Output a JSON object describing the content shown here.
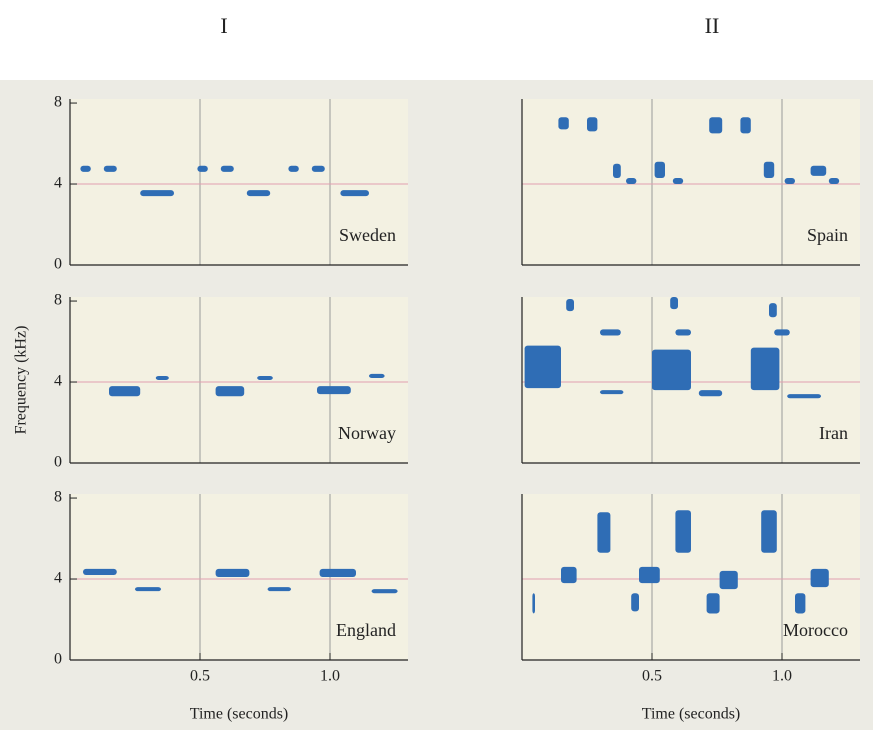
{
  "column_labels": [
    "I",
    "II"
  ],
  "chart_data": [
    {
      "type": "spectrogram",
      "title": "Sweden",
      "xlim": [
        0,
        1.3
      ],
      "ylim": [
        0,
        8.2
      ],
      "yticks": [
        8,
        4,
        0
      ],
      "xgrid": [
        0.5,
        1
      ],
      "ygrid": [
        4
      ],
      "color": "#2f6db5",
      "syllables": [
        {
          "time": [
            0.04,
            0.08
          ],
          "freq": [
            4.6,
            4.9
          ]
        },
        {
          "time": [
            0.13,
            0.18
          ],
          "freq": [
            4.6,
            4.9
          ]
        },
        {
          "time": [
            0.27,
            0.4
          ],
          "freq": [
            3.4,
            3.7
          ]
        },
        {
          "time": [
            0.49,
            0.53
          ],
          "freq": [
            4.6,
            4.9
          ]
        },
        {
          "time": [
            0.58,
            0.63
          ],
          "freq": [
            4.6,
            4.9
          ]
        },
        {
          "time": [
            0.68,
            0.77
          ],
          "freq": [
            3.4,
            3.7
          ]
        },
        {
          "time": [
            0.84,
            0.88
          ],
          "freq": [
            4.6,
            4.9
          ]
        },
        {
          "time": [
            0.93,
            0.98
          ],
          "freq": [
            4.6,
            4.9
          ]
        },
        {
          "time": [
            1.04,
            1.15
          ],
          "freq": [
            3.4,
            3.7
          ]
        }
      ]
    },
    {
      "type": "spectrogram",
      "title": "Spain",
      "xlim": [
        0,
        1.3
      ],
      "ylim": [
        0,
        8.2
      ],
      "xgrid": [
        0.5,
        1
      ],
      "ygrid": [
        4
      ],
      "color": "#2f6db5",
      "syllables": [
        {
          "time": [
            0.14,
            0.18
          ],
          "freq": [
            6.7,
            7.3
          ]
        },
        {
          "time": [
            0.25,
            0.29
          ],
          "freq": [
            6.6,
            7.3
          ]
        },
        {
          "time": [
            0.35,
            0.38
          ],
          "freq": [
            4.3,
            5.0
          ]
        },
        {
          "time": [
            0.4,
            0.44
          ],
          "freq": [
            4.0,
            4.3
          ]
        },
        {
          "time": [
            0.51,
            0.55
          ],
          "freq": [
            4.3,
            5.1
          ]
        },
        {
          "time": [
            0.58,
            0.62
          ],
          "freq": [
            4.0,
            4.3
          ]
        },
        {
          "time": [
            0.72,
            0.77
          ],
          "freq": [
            6.5,
            7.3
          ]
        },
        {
          "time": [
            0.84,
            0.88
          ],
          "freq": [
            6.5,
            7.3
          ]
        },
        {
          "time": [
            0.93,
            0.97
          ],
          "freq": [
            4.3,
            5.1
          ]
        },
        {
          "time": [
            1.01,
            1.05
          ],
          "freq": [
            4.0,
            4.3
          ]
        },
        {
          "time": [
            1.11,
            1.17
          ],
          "freq": [
            4.4,
            4.9
          ]
        },
        {
          "time": [
            1.18,
            1.22
          ],
          "freq": [
            4.0,
            4.3
          ]
        }
      ]
    },
    {
      "type": "spectrogram",
      "title": "Norway",
      "ylabel": "Frequency (kHz)",
      "xlim": [
        0,
        1.3
      ],
      "ylim": [
        0,
        8.2
      ],
      "yticks": [
        8,
        4,
        0
      ],
      "xgrid": [
        0.5,
        1
      ],
      "ygrid": [
        4
      ],
      "color": "#2f6db5",
      "syllables": [
        {
          "time": [
            0.15,
            0.27
          ],
          "freq": [
            3.3,
            3.8
          ]
        },
        {
          "time": [
            0.33,
            0.38
          ],
          "freq": [
            4.1,
            4.3
          ]
        },
        {
          "time": [
            0.56,
            0.67
          ],
          "freq": [
            3.3,
            3.8
          ]
        },
        {
          "time": [
            0.72,
            0.78
          ],
          "freq": [
            4.1,
            4.3
          ]
        },
        {
          "time": [
            0.95,
            1.08
          ],
          "freq": [
            3.4,
            3.8
          ]
        },
        {
          "time": [
            1.15,
            1.21
          ],
          "freq": [
            4.2,
            4.4
          ]
        }
      ]
    },
    {
      "type": "spectrogram",
      "title": "Iran",
      "xlim": [
        0,
        1.3
      ],
      "ylim": [
        0,
        8.2
      ],
      "xgrid": [
        0.5,
        1
      ],
      "ygrid": [
        4
      ],
      "color": "#2f6db5",
      "syllables": [
        {
          "time": [
            0.17,
            0.2
          ],
          "freq": [
            7.5,
            8.1
          ]
        },
        {
          "time": [
            0.3,
            0.38
          ],
          "freq": [
            6.3,
            6.6
          ]
        },
        {
          "time": [
            0.01,
            0.15
          ],
          "freq": [
            3.7,
            5.8
          ]
        },
        {
          "time": [
            0.3,
            0.39
          ],
          "freq": [
            3.4,
            3.6
          ]
        },
        {
          "time": [
            0.57,
            0.6
          ],
          "freq": [
            7.6,
            8.2
          ]
        },
        {
          "time": [
            0.59,
            0.65
          ],
          "freq": [
            6.3,
            6.6
          ]
        },
        {
          "time": [
            0.5,
            0.65
          ],
          "freq": [
            3.6,
            5.6
          ]
        },
        {
          "time": [
            0.68,
            0.77
          ],
          "freq": [
            3.3,
            3.6
          ]
        },
        {
          "time": [
            0.95,
            0.98
          ],
          "freq": [
            7.2,
            7.9
          ]
        },
        {
          "time": [
            0.97,
            1.03
          ],
          "freq": [
            6.3,
            6.6
          ]
        },
        {
          "time": [
            0.88,
            0.99
          ],
          "freq": [
            3.6,
            5.7
          ]
        },
        {
          "time": [
            1.02,
            1.15
          ],
          "freq": [
            3.2,
            3.4
          ]
        }
      ]
    },
    {
      "type": "spectrogram",
      "title": "England",
      "xlabel": "Time (seconds)",
      "xlim": [
        0,
        1.3
      ],
      "ylim": [
        0,
        8.2
      ],
      "yticks": [
        8,
        4,
        0
      ],
      "xticks": [
        0.5,
        {
          "value": 1,
          "label": "1.0"
        }
      ],
      "xgrid": [
        0.5,
        1
      ],
      "ygrid": [
        4
      ],
      "color": "#2f6db5",
      "syllables": [
        {
          "time": [
            0.05,
            0.18
          ],
          "freq": [
            4.2,
            4.5
          ]
        },
        {
          "time": [
            0.25,
            0.35
          ],
          "freq": [
            3.4,
            3.6
          ]
        },
        {
          "time": [
            0.56,
            0.69
          ],
          "freq": [
            4.1,
            4.5
          ]
        },
        {
          "time": [
            0.76,
            0.85
          ],
          "freq": [
            3.4,
            3.6
          ]
        },
        {
          "time": [
            0.96,
            1.1
          ],
          "freq": [
            4.1,
            4.5
          ]
        },
        {
          "time": [
            1.16,
            1.26
          ],
          "freq": [
            3.3,
            3.5
          ]
        }
      ]
    },
    {
      "type": "spectrogram",
      "title": "Morocco",
      "xlabel": "Time (seconds)",
      "xlim": [
        0,
        1.3
      ],
      "ylim": [
        0,
        8.2
      ],
      "xticks": [
        0.5,
        {
          "value": 1,
          "label": "1.0"
        }
      ],
      "xgrid": [
        0.5,
        1
      ],
      "ygrid": [
        4
      ],
      "color": "#2f6db5",
      "syllables": [
        {
          "time": [
            0.04,
            0.05
          ],
          "freq": [
            2.3,
            3.3
          ]
        },
        {
          "time": [
            0.15,
            0.21
          ],
          "freq": [
            3.8,
            4.6
          ]
        },
        {
          "time": [
            0.29,
            0.34
          ],
          "freq": [
            5.3,
            7.3
          ]
        },
        {
          "time": [
            0.42,
            0.45
          ],
          "freq": [
            2.4,
            3.3
          ]
        },
        {
          "time": [
            0.45,
            0.53
          ],
          "freq": [
            3.8,
            4.6
          ]
        },
        {
          "time": [
            0.59,
            0.65
          ],
          "freq": [
            5.3,
            7.4
          ]
        },
        {
          "time": [
            0.71,
            0.76
          ],
          "freq": [
            2.3,
            3.3
          ]
        },
        {
          "time": [
            0.76,
            0.83
          ],
          "freq": [
            3.5,
            4.4
          ]
        },
        {
          "time": [
            0.92,
            0.98
          ],
          "freq": [
            5.3,
            7.4
          ]
        },
        {
          "time": [
            1.05,
            1.09
          ],
          "freq": [
            2.3,
            3.3
          ]
        },
        {
          "time": [
            1.11,
            1.18
          ],
          "freq": [
            3.6,
            4.5
          ]
        }
      ]
    }
  ]
}
